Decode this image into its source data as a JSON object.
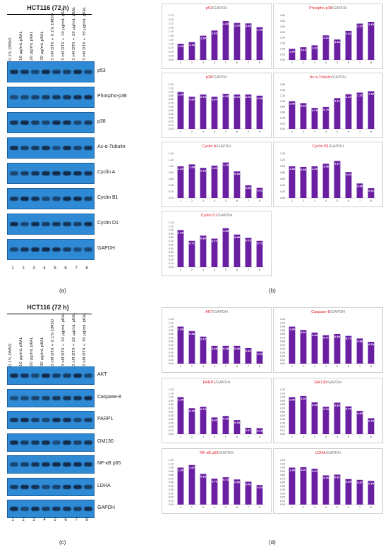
{
  "panel_a": {
    "header": "HCT116 (72 h)",
    "lanes": [
      "0.1% DMSO",
      "10 μg/mL pKAL",
      "20 μg/mL pKAL",
      "30 μg/mL pKAL",
      "3 nM DTX + 0.1% DMSO",
      "3 nM DTX + 10 μg/mL pKAL",
      "3 nM DTX + 20 μg/mL pKAL",
      "3 nM DTX + 30 μg/mL pKAL"
    ],
    "lane_numbers": [
      "1",
      "2",
      "3",
      "4",
      "5",
      "6",
      "7",
      "8"
    ],
    "blots": [
      "p53",
      "Phospho-p38",
      "p38",
      "Ac-α-Tubulin",
      "Cyclin A",
      "Cyclin B1",
      "Cyclin D1",
      "GAPDH"
    ],
    "label": "(a)"
  },
  "panel_c": {
    "header": "HCT116 (72 h)",
    "lanes": [
      "0.1% DMSO",
      "10 μg/mL pKAL",
      "20 μg/mL pKAL",
      "30 μg/mL pKAL",
      "3 nM DTX + 0.1% DMSO",
      "3 nM DTX + 10 μg/mL pKAL",
      "3 nM DTX + 20 μg/mL pKAL",
      "3 nM DTX + 30 μg/mL pKAL"
    ],
    "lane_numbers": [
      "1",
      "2",
      "3",
      "4",
      "5",
      "6",
      "7",
      "8"
    ],
    "blots": [
      "AKT",
      "Caspase-8",
      "PARP1",
      "GM130",
      "NF-κB p65",
      "LDHA",
      "GAPDH"
    ],
    "label": "(c)"
  },
  "panel_b_label": "(b)",
  "panel_d_label": "(d)",
  "chart_data": [
    {
      "type": "bar",
      "title_red": "p53",
      "title_gray": "/GAPDH",
      "categories": [
        "1",
        "2",
        "3",
        "4",
        "5",
        "6",
        "7",
        "8"
      ],
      "values": [
        1.0,
        1.1,
        1.5,
        1.82,
        2.4,
        2.29,
        2.26,
        2.03
      ],
      "ylim": [
        0,
        2.75
      ],
      "yticks": [
        "0.00",
        "0.25",
        "0.50",
        "0.75",
        "1.00",
        "1.25",
        "1.50",
        "1.75",
        "2.00",
        "2.25",
        "2.50",
        "2.75"
      ],
      "color": "#6a1fa2"
    },
    {
      "type": "bar",
      "title_red": "Phospho-p38",
      "title_gray": "/GAPDH",
      "categories": [
        "1",
        "2",
        "3",
        "4",
        "5",
        "6",
        "7",
        "8"
      ],
      "values": [
        1.0,
        1.14,
        1.31,
        2.21,
        1.84,
        2.61,
        3.27,
        3.43
      ],
      "ylim": [
        0,
        4.0
      ],
      "yticks": [
        "0.00",
        "0.50",
        "1.00",
        "1.50",
        "2.00",
        "2.50",
        "3.00",
        "3.50",
        "4.00"
      ],
      "color": "#6a1fa2"
    },
    {
      "type": "bar",
      "title_red": "p38",
      "title_gray": "/GAPDH",
      "categories": [
        "1",
        "2",
        "3",
        "4",
        "5",
        "6",
        "7",
        "8"
      ],
      "values": [
        1.0,
        0.87,
        0.93,
        0.87,
        0.95,
        0.93,
        0.93,
        0.9
      ],
      "ylim": [
        0,
        1.2
      ],
      "yticks": [
        "0.00",
        "0.10",
        "0.20",
        "0.30",
        "0.40",
        "0.50",
        "0.60",
        "0.70",
        "0.80",
        "0.90",
        "1.00",
        "1.10",
        "1.20"
      ],
      "color": "#6a1fa2"
    },
    {
      "type": "bar",
      "title_red": "Ac-α-Tubulin",
      "title_gray": "/GAPDH",
      "categories": [
        "1",
        "2",
        "3",
        "4",
        "5",
        "6",
        "7",
        "8"
      ],
      "values": [
        1.0,
        0.93,
        0.76,
        0.79,
        1.11,
        1.25,
        1.31,
        1.36
      ],
      "ylim": [
        0,
        1.6
      ],
      "yticks": [
        "0.00",
        "0.20",
        "0.40",
        "0.60",
        "0.80",
        "1.00",
        "1.20",
        "1.40",
        "1.60"
      ],
      "color": "#6a1fa2"
    },
    {
      "type": "bar",
      "title_red": "Cyclin A",
      "title_gray": "/GAPDH",
      "categories": [
        "1",
        "2",
        "3",
        "4",
        "5",
        "6",
        "7",
        "8"
      ],
      "values": [
        1.0,
        1.06,
        0.95,
        1.02,
        1.12,
        0.84,
        0.4,
        0.32
      ],
      "ylim": [
        0,
        1.4
      ],
      "yticks": [
        "0.00",
        "0.20",
        "0.40",
        "0.60",
        "0.80",
        "1.00",
        "1.20",
        "1.40"
      ],
      "color": "#6a1fa2"
    },
    {
      "type": "bar",
      "title_red": "Cyclin B1",
      "title_gray": "/GAPDH",
      "categories": [
        "1",
        "2",
        "3",
        "4",
        "5",
        "6",
        "7",
        "8"
      ],
      "values": [
        1.0,
        0.98,
        1.0,
        1.08,
        1.17,
        0.82,
        0.46,
        0.31
      ],
      "ylim": [
        0,
        1.4
      ],
      "yticks": [
        "0.00",
        "0.20",
        "0.40",
        "0.60",
        "0.80",
        "1.00",
        "1.20",
        "1.40"
      ],
      "color": "#6a1fa2"
    },
    {
      "type": "bar",
      "title_red": "Cyclin D1",
      "title_gray": "/GAPDH",
      "categories": [
        "1",
        "2",
        "3",
        "4",
        "5",
        "6",
        "7",
        "8"
      ],
      "values": [
        1.0,
        0.71,
        0.85,
        0.77,
        1.05,
        0.88,
        0.79,
        0.71
      ],
      "ylim": [
        0,
        1.2
      ],
      "yticks": [
        "0.00",
        "0.10",
        "0.20",
        "0.30",
        "0.40",
        "0.50",
        "0.60",
        "0.70",
        "0.80",
        "0.90",
        "1.00",
        "1.10",
        "1.20"
      ],
      "color": "#6a1fa2"
    },
    {
      "type": "bar",
      "title_red": "AKT",
      "title_gray": "/GAPDH",
      "categories": [
        "1",
        "2",
        "3",
        "4",
        "5",
        "6",
        "7",
        "8"
      ],
      "values": [
        1.0,
        0.88,
        0.73,
        0.48,
        0.48,
        0.48,
        0.42,
        0.33
      ],
      "ylim": [
        0,
        1.2
      ],
      "yticks": [
        "0.00",
        "0.10",
        "0.20",
        "0.30",
        "0.40",
        "0.50",
        "0.60",
        "0.70",
        "0.80",
        "0.90",
        "1.00",
        "1.10",
        "1.20"
      ],
      "color": "#6a1fa2"
    },
    {
      "type": "bar",
      "title_red": "Caspase-8",
      "title_gray": "/GAPDH",
      "categories": [
        "1",
        "2",
        "3",
        "4",
        "5",
        "6",
        "7",
        "8"
      ],
      "values": [
        1.0,
        0.91,
        0.84,
        0.77,
        0.8,
        0.75,
        0.68,
        0.59
      ],
      "ylim": [
        0,
        1.2
      ],
      "yticks": [
        "0.00",
        "0.10",
        "0.20",
        "0.30",
        "0.40",
        "0.50",
        "0.60",
        "0.70",
        "0.80",
        "0.90",
        "1.00",
        "1.10",
        "1.20"
      ],
      "color": "#6a1fa2"
    },
    {
      "type": "bar",
      "title_red": "PARP1",
      "title_gray": "/GAPDH",
      "categories": [
        "1",
        "2",
        "3",
        "4",
        "5",
        "6",
        "7",
        "8"
      ],
      "values": [
        1.0,
        0.7,
        0.74,
        0.45,
        0.49,
        0.38,
        0.17,
        0.16
      ],
      "ylim": [
        0,
        1.2
      ],
      "yticks": [
        "0.00",
        "0.10",
        "0.20",
        "0.30",
        "0.40",
        "0.50",
        "0.60",
        "0.70",
        "0.80",
        "0.90",
        "1.00",
        "1.10",
        "1.20"
      ],
      "color": "#6a1fa2"
    },
    {
      "type": "bar",
      "title_red": "GM130",
      "title_gray": "/GAPDH",
      "categories": [
        "1",
        "2",
        "3",
        "4",
        "5",
        "6",
        "7",
        "8"
      ],
      "values": [
        1.0,
        1.03,
        0.86,
        0.74,
        0.85,
        0.75,
        0.63,
        0.43
      ],
      "ylim": [
        0,
        1.2
      ],
      "yticks": [
        "0.00",
        "0.10",
        "0.20",
        "0.30",
        "0.40",
        "0.50",
        "0.60",
        "0.70",
        "0.80",
        "0.90",
        "1.00",
        "1.10",
        "1.20"
      ],
      "color": "#6a1fa2"
    },
    {
      "type": "bar",
      "title_red": "NF-κB p65",
      "title_gray": "/GAPDH",
      "categories": [
        "1",
        "2",
        "3",
        "4",
        "5",
        "6",
        "7",
        "8"
      ],
      "values": [
        1.0,
        1.07,
        0.83,
        0.7,
        0.74,
        0.68,
        0.62,
        0.53
      ],
      "ylim": [
        0,
        1.2
      ],
      "yticks": [
        "0.00",
        "0.10",
        "0.20",
        "0.30",
        "0.40",
        "0.50",
        "0.60",
        "0.70",
        "0.80",
        "0.90",
        "1.00",
        "1.10",
        "1.20"
      ],
      "color": "#6a1fa2"
    },
    {
      "type": "bar",
      "title_red": "LDHA",
      "title_gray": "/GAPDH",
      "categories": [
        "1",
        "2",
        "3",
        "4",
        "5",
        "6",
        "7",
        "8"
      ],
      "values": [
        1.0,
        1.01,
        0.97,
        0.79,
        0.81,
        0.69,
        0.67,
        0.64
      ],
      "ylim": [
        0,
        1.2
      ],
      "yticks": [
        "0.00",
        "0.10",
        "0.20",
        "0.30",
        "0.40",
        "0.50",
        "0.60",
        "0.70",
        "0.80",
        "0.90",
        "1.00",
        "1.10",
        "1.20"
      ],
      "color": "#6a1fa2"
    }
  ]
}
